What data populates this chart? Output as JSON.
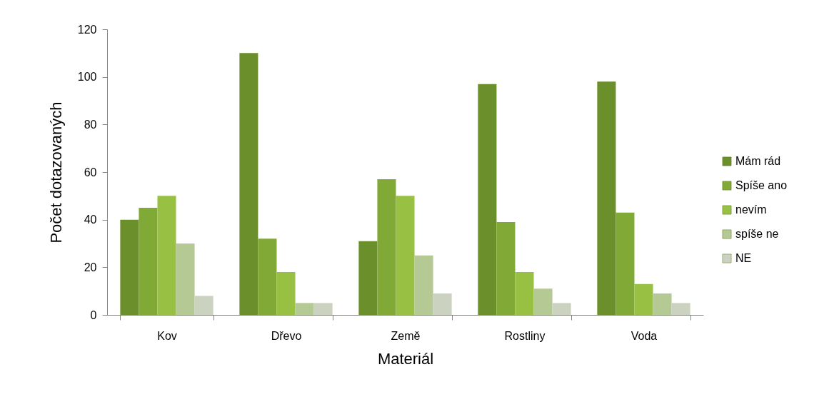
{
  "chart_data": {
    "type": "bar",
    "xlabel": "Materiál",
    "ylabel": "Počet dotazovaných",
    "categories": [
      "Kov",
      "Dřevo",
      "Země",
      "Rostliny",
      "Voda"
    ],
    "series": [
      {
        "name": "Mám rád",
        "color": "#6b8f2b",
        "values": [
          40,
          110,
          31,
          97,
          98
        ]
      },
      {
        "name": "Spíše ano",
        "color": "#80a936",
        "values": [
          45,
          32,
          57,
          39,
          43
        ]
      },
      {
        "name": "nevím",
        "color": "#98c143",
        "values": [
          50,
          18,
          50,
          18,
          13
        ]
      },
      {
        "name": "spíše ne",
        "color": "#b4c994",
        "values": [
          30,
          5,
          25,
          11,
          9
        ]
      },
      {
        "name": "NE",
        "color": "#cbd3c0",
        "values": [
          8,
          5,
          9,
          5,
          5
        ]
      }
    ],
    "ylim": [
      0,
      120
    ],
    "yticks": [
      0,
      20,
      40,
      60,
      80,
      100,
      120
    ],
    "grid": false,
    "legend": "right"
  }
}
